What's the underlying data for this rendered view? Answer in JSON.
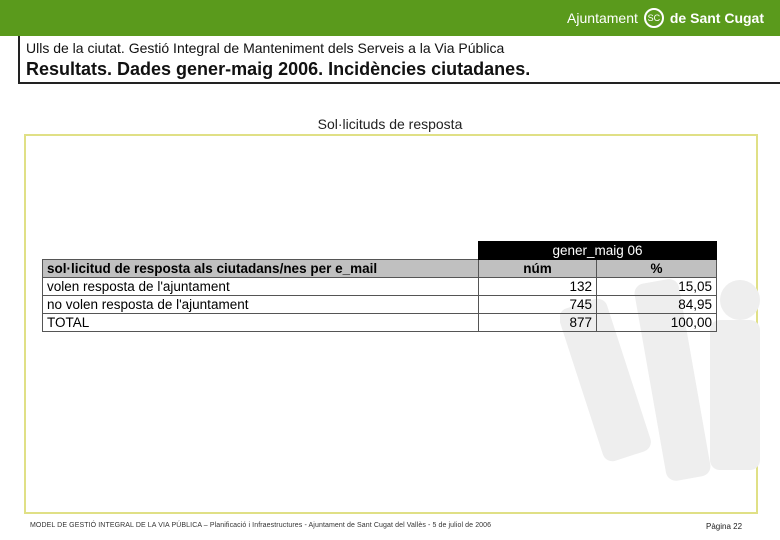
{
  "header": {
    "brand_part1": "Ajuntament",
    "brand_seal": "SC",
    "brand_part2": "de Sant Cugat",
    "subtitle": "Ulls de la ciutat. Gestió Integral de Manteniment dels Serveis a la Via Pública",
    "title": "Resultats. Dades gener-maig 2006. Incidències ciutadanes."
  },
  "section_title": "Sol·licituds de resposta",
  "table": {
    "group_header": "gener_maig 06",
    "row_header": "sol·licitud de resposta als ciutadans/nes per e_mail",
    "col_num": "núm",
    "col_pct": "%",
    "rows": [
      {
        "label": "volen resposta de l'ajuntament",
        "num": "132",
        "pct": "15,05"
      },
      {
        "label": "no volen resposta de l'ajuntament",
        "num": "745",
        "pct": "84,95"
      },
      {
        "label": "TOTAL",
        "num": "877",
        "pct": "100,00"
      }
    ]
  },
  "footer": {
    "text": "MODEL DE GESTIÓ INTEGRAL DE LA VIA PÚBLICA – Planificació i Infraestructures - Ajuntament de Sant Cugat del Vallès - 5 de juliol de 2006",
    "page": "Pàgina 22"
  },
  "colors": {
    "brand_green": "#5a9a1c",
    "frame_yellow": "#e0e086",
    "header_grey": "#c0c0c0"
  }
}
